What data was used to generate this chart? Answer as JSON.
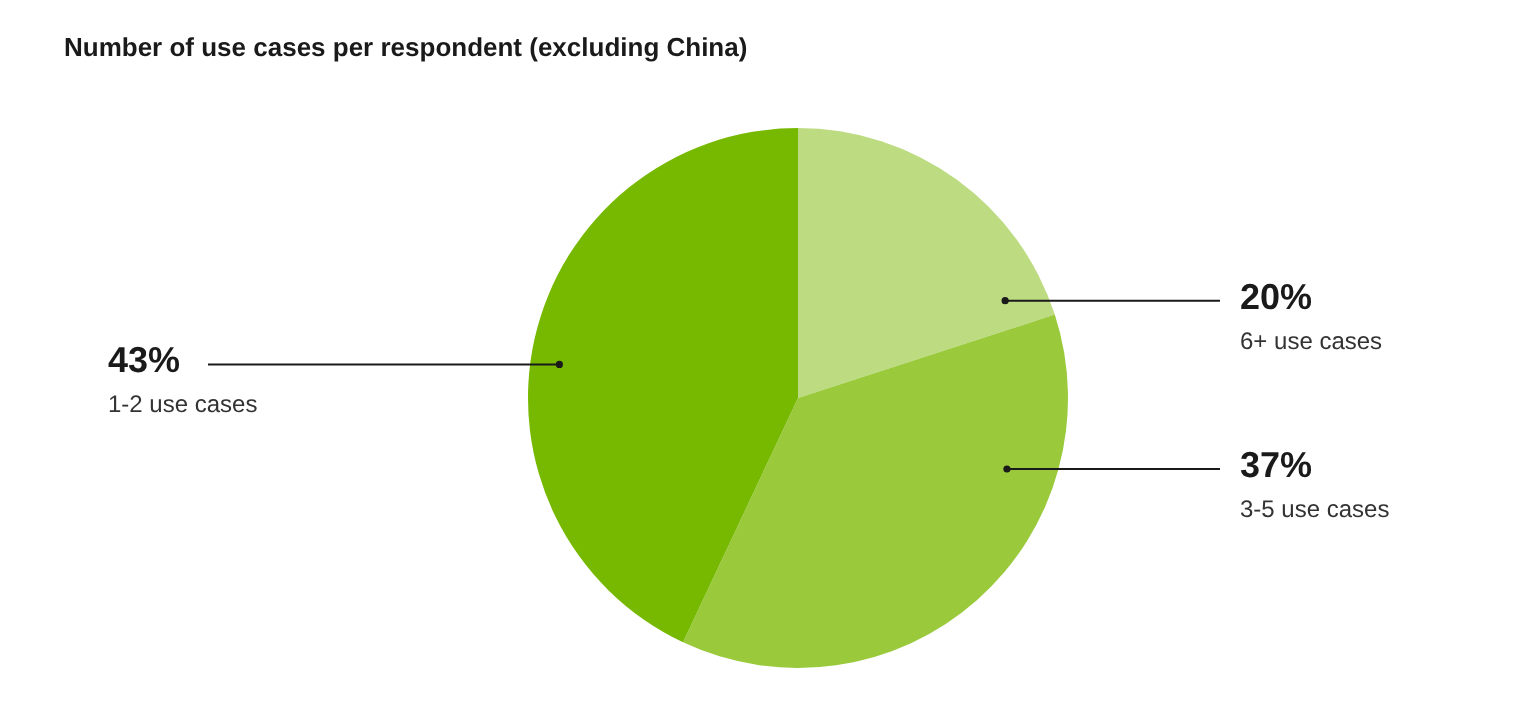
{
  "chart_data": {
    "type": "pie",
    "title": "Number of use cases per respondent (excluding China)",
    "categories": [
      "6+ use cases",
      "3-5 use cases",
      "1-2 use cases"
    ],
    "values": [
      20,
      37,
      43
    ],
    "value_labels": [
      "20%",
      "37%",
      "43%"
    ],
    "colors": [
      "#bddc82",
      "#9aca3c",
      "#76b900"
    ],
    "legend": false
  }
}
